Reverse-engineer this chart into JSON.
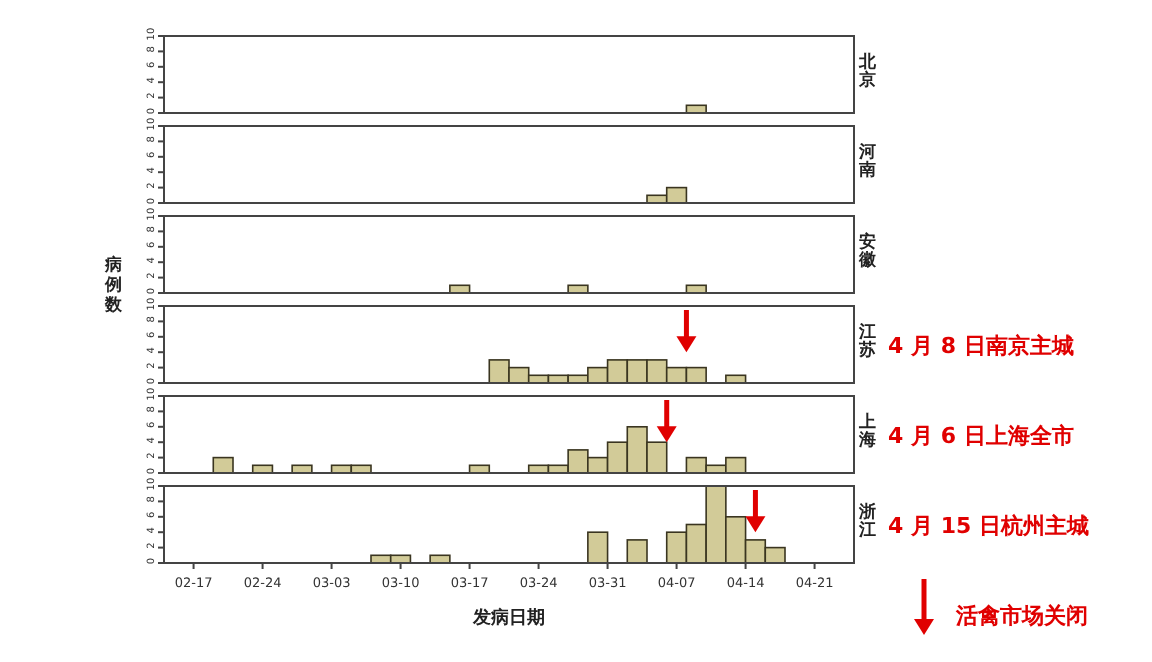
{
  "chart_data": [
    {
      "type": "bar",
      "title": "北京",
      "x": [
        "--04-09"
      ],
      "values": [
        1
      ],
      "color": "#d2cb98",
      "xlim": [
        "--02-14",
        "--04-25"
      ],
      "ylim": [
        0,
        10
      ],
      "yticks": [
        0,
        2,
        4,
        6,
        8,
        10
      ],
      "tick_labels": "y",
      "grid": false
    },
    {
      "type": "bar",
      "title": "河南",
      "x": [
        "--04-05",
        "--04-07"
      ],
      "values": [
        1,
        2
      ],
      "color": "#d2cb98",
      "xlim": [
        "--02-14",
        "--04-25"
      ],
      "ylim": [
        0,
        10
      ],
      "yticks": [
        0,
        2,
        4,
        6,
        8,
        10
      ],
      "tick_labels": "y",
      "grid": false
    },
    {
      "type": "bar",
      "title": "安徽",
      "x": [
        "--03-16",
        "--03-28",
        "--04-09"
      ],
      "values": [
        1,
        1,
        1
      ],
      "color": "#d2cb98",
      "xlim": [
        "--02-14",
        "--04-25"
      ],
      "ylim": [
        0,
        10
      ],
      "yticks": [
        0,
        2,
        4,
        6,
        8,
        10
      ],
      "tick_labels": "y",
      "grid": false
    },
    {
      "type": "bar",
      "title": "江苏",
      "ylabel": "病例数",
      "x": [
        "--03-20",
        "--03-22",
        "--03-24",
        "--03-26",
        "--03-28",
        "--03-30",
        "--04-01",
        "--04-03",
        "--04-05",
        "--04-07",
        "--04-09",
        "--04-13"
      ],
      "values": [
        3,
        2,
        1,
        1,
        1,
        2,
        3,
        3,
        3,
        2,
        2,
        1
      ],
      "color": "#d2cb98",
      "xlim": [
        "--02-14",
        "--04-25"
      ],
      "ylim": [
        0,
        10
      ],
      "yticks": [
        0,
        2,
        4,
        6,
        8,
        10
      ],
      "tick_labels": "y",
      "grid": false,
      "ref_lines": [
        {
          "axis": "x",
          "value": "--04-08",
          "label": "4 月 8 日南京主城",
          "color": "#e00000"
        }
      ]
    },
    {
      "type": "bar",
      "title": "上海",
      "x": [
        "--02-20",
        "--02-24",
        "--02-28",
        "--03-04",
        "--03-06",
        "--03-18",
        "--03-24",
        "--03-26",
        "--03-28",
        "--03-30",
        "--04-01",
        "--04-03",
        "--04-05",
        "--04-09",
        "--04-11",
        "--04-13"
      ],
      "values": [
        2,
        1,
        1,
        1,
        1,
        1,
        1,
        1,
        3,
        2,
        4,
        6,
        4,
        2,
        1,
        2
      ],
      "color": "#d2cb98",
      "xlim": [
        "--02-14",
        "--04-25"
      ],
      "ylim": [
        0,
        10
      ],
      "yticks": [
        0,
        2,
        4,
        6,
        8,
        10
      ],
      "tick_labels": "y",
      "grid": false,
      "ref_lines": [
        {
          "axis": "x",
          "value": "--04-06",
          "label": "4 月 6 日上海全市",
          "color": "#e00000"
        }
      ]
    },
    {
      "type": "bar",
      "title": "浙江",
      "xlabel": "发病日期",
      "x": [
        "--03-08",
        "--03-10",
        "--03-14",
        "--03-30",
        "--04-03",
        "--04-07",
        "--04-09",
        "--04-11",
        "--04-13",
        "--04-15",
        "--04-17"
      ],
      "values": [
        1,
        1,
        1,
        4,
        3,
        4,
        5,
        10,
        6,
        3,
        2
      ],
      "color": "#d2cb98",
      "xlim": [
        "--02-14",
        "--04-25"
      ],
      "ylim": [
        0,
        10
      ],
      "yticks": [
        0,
        2,
        4,
        6,
        8,
        10
      ],
      "grid": false,
      "xticks": [
        {
          "value": "--02-17",
          "label": "02-17"
        },
        {
          "value": "--02-24",
          "label": "02-24"
        },
        {
          "value": "--03-03",
          "label": "03-03"
        },
        {
          "value": "--03-10",
          "label": "03-10"
        },
        {
          "value": "--03-17",
          "label": "03-17"
        },
        {
          "value": "--03-24",
          "label": "03-24"
        },
        {
          "value": "--03-31",
          "label": "03-31"
        },
        {
          "value": "--04-07",
          "label": "04-07"
        },
        {
          "value": "--04-14",
          "label": "04-14"
        },
        {
          "value": "--04-21",
          "label": "04-21"
        }
      ],
      "ref_lines": [
        {
          "axis": "x",
          "value": "--04-15",
          "label": "4 月 15 日杭州主城",
          "color": "#e00000"
        }
      ],
      "annotations": [
        "活禽市场关闭"
      ]
    }
  ]
}
